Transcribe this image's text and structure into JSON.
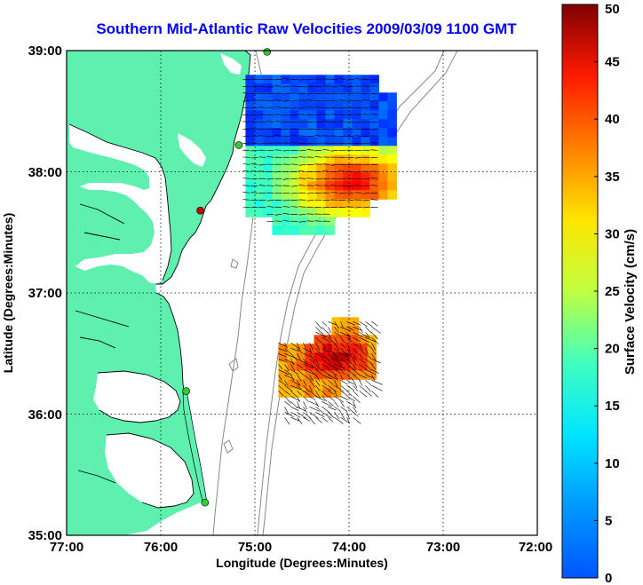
{
  "figure": {
    "title": "Southern Mid-Atlantic Raw Velocities 2009/03/09 1100 GMT",
    "xlabel": "Longitude (Degrees:Minutes)",
    "ylabel": "Latitude (Degrees:Minutes)",
    "x_ticks": [
      "77:00",
      "76:00",
      "75:00",
      "74:00",
      "73:00",
      "72:00"
    ],
    "y_ticks": [
      "39:00",
      "38:00",
      "37:00",
      "36:00",
      "35:00"
    ],
    "colorbar": {
      "label": "Surface Velocity (cm/s)",
      "ticks": [
        "50",
        "45",
        "40",
        "35",
        "30",
        "25",
        "20",
        "15",
        "10",
        "5",
        "0"
      ],
      "min": 0,
      "max": 50,
      "units": "cm/s"
    }
  },
  "map_data": {
    "lon_range": [
      -77,
      -72
    ],
    "lat_range": [
      35,
      39
    ],
    "grid": true,
    "land_color": "#5ff0b0",
    "coast_color": "#000000",
    "isobath_color": "#888888",
    "colormap": "jet",
    "stations": [
      {
        "name": "north-station",
        "lon": -74.87,
        "lat": 38.99,
        "color": "#33cc33"
      },
      {
        "name": "cape-henlopen-station",
        "lon": -75.17,
        "lat": 38.22,
        "color": "#33cc33"
      },
      {
        "name": "eastern-shore-station",
        "lon": -75.58,
        "lat": 37.68,
        "color": "#cc0000"
      },
      {
        "name": "outer-banks-station-1",
        "lon": -75.73,
        "lat": 36.19,
        "color": "#33cc33"
      },
      {
        "name": "outer-banks-station-2",
        "lon": -75.53,
        "lat": 35.27,
        "color": "#33cc33"
      }
    ],
    "velocity_regions": [
      {
        "name": "northern-field",
        "lon": [
          -75.1,
          -73.55
        ],
        "lat": [
          37.5,
          38.8
        ],
        "low_speed_lat": 38.25,
        "peak": {
          "lon": -74.0,
          "lat": 37.95,
          "speed": 45
        }
      },
      {
        "name": "southern-field",
        "lon": [
          -74.75,
          -73.8
        ],
        "lat": [
          36.15,
          36.8
        ],
        "peak": {
          "lon": -74.2,
          "lat": 36.5,
          "speed": 50
        }
      }
    ]
  }
}
